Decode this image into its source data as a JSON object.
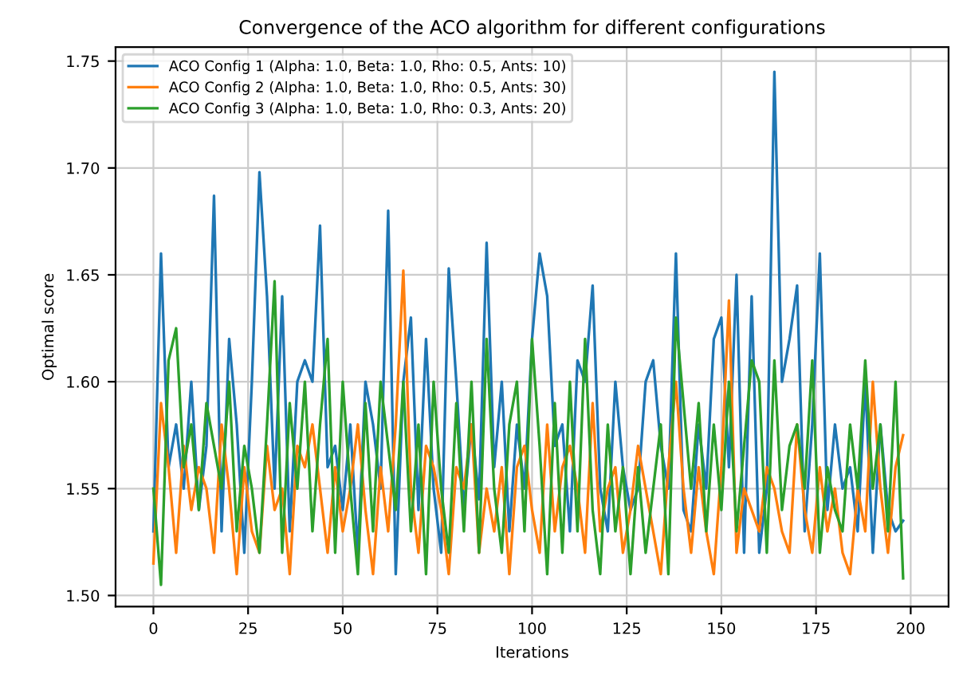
{
  "chart_data": {
    "type": "line",
    "title": "Convergence of the ACO algorithm for different configurations",
    "xlabel": "Iterations",
    "ylabel": "Optimal score",
    "x": [
      0,
      2,
      4,
      6,
      8,
      10,
      12,
      14,
      16,
      18,
      20,
      22,
      24,
      26,
      28,
      30,
      32,
      34,
      36,
      38,
      40,
      42,
      44,
      46,
      48,
      50,
      52,
      54,
      56,
      58,
      60,
      62,
      64,
      66,
      68,
      70,
      72,
      74,
      76,
      78,
      80,
      82,
      84,
      86,
      88,
      90,
      92,
      94,
      96,
      98,
      100,
      102,
      104,
      106,
      108,
      110,
      112,
      114,
      116,
      118,
      120,
      122,
      124,
      126,
      128,
      130,
      132,
      134,
      136,
      138,
      140,
      142,
      144,
      146,
      148,
      150,
      152,
      154,
      156,
      158,
      160,
      162,
      164,
      166,
      168,
      170,
      172,
      174,
      176,
      178,
      180,
      182,
      184,
      186,
      188,
      190,
      192,
      194,
      196,
      198
    ],
    "series": [
      {
        "name": "ACO Config 1 (Alpha: 1.0, Beta: 1.0, Rho: 0.5, Ants: 10)",
        "color": "#1f77b4",
        "values": [
          1.53,
          1.66,
          1.56,
          1.58,
          1.55,
          1.6,
          1.54,
          1.57,
          1.687,
          1.53,
          1.62,
          1.58,
          1.52,
          1.6,
          1.698,
          1.64,
          1.55,
          1.64,
          1.53,
          1.6,
          1.61,
          1.6,
          1.673,
          1.56,
          1.57,
          1.54,
          1.58,
          1.52,
          1.6,
          1.58,
          1.55,
          1.68,
          1.51,
          1.6,
          1.63,
          1.54,
          1.62,
          1.55,
          1.52,
          1.653,
          1.6,
          1.54,
          1.58,
          1.545,
          1.665,
          1.56,
          1.6,
          1.53,
          1.58,
          1.55,
          1.62,
          1.66,
          1.64,
          1.57,
          1.58,
          1.53,
          1.61,
          1.6,
          1.645,
          1.55,
          1.53,
          1.6,
          1.56,
          1.54,
          1.55,
          1.6,
          1.61,
          1.57,
          1.55,
          1.66,
          1.54,
          1.53,
          1.58,
          1.55,
          1.62,
          1.63,
          1.56,
          1.65,
          1.52,
          1.64,
          1.52,
          1.55,
          1.745,
          1.6,
          1.62,
          1.645,
          1.53,
          1.58,
          1.66,
          1.54,
          1.58,
          1.55,
          1.56,
          1.53,
          1.6,
          1.52,
          1.58,
          1.54,
          1.53,
          1.535
        ]
      },
      {
        "name": "ACO Config 2 (Alpha: 1.0, Beta: 1.0, Rho: 0.5, Ants: 30)",
        "color": "#ff7f0e",
        "values": [
          1.515,
          1.59,
          1.56,
          1.52,
          1.57,
          1.54,
          1.56,
          1.55,
          1.52,
          1.58,
          1.55,
          1.51,
          1.56,
          1.53,
          1.52,
          1.57,
          1.54,
          1.55,
          1.51,
          1.57,
          1.56,
          1.58,
          1.55,
          1.52,
          1.56,
          1.53,
          1.55,
          1.58,
          1.54,
          1.51,
          1.56,
          1.53,
          1.58,
          1.652,
          1.55,
          1.52,
          1.57,
          1.56,
          1.54,
          1.51,
          1.56,
          1.55,
          1.58,
          1.52,
          1.55,
          1.53,
          1.56,
          1.51,
          1.56,
          1.57,
          1.54,
          1.52,
          1.58,
          1.53,
          1.56,
          1.57,
          1.55,
          1.52,
          1.59,
          1.53,
          1.55,
          1.56,
          1.52,
          1.54,
          1.57,
          1.55,
          1.53,
          1.51,
          1.56,
          1.6,
          1.55,
          1.52,
          1.56,
          1.53,
          1.51,
          1.56,
          1.638,
          1.52,
          1.55,
          1.54,
          1.53,
          1.56,
          1.55,
          1.53,
          1.52,
          1.58,
          1.54,
          1.52,
          1.56,
          1.53,
          1.55,
          1.52,
          1.51,
          1.55,
          1.53,
          1.6,
          1.55,
          1.52,
          1.56,
          1.575
        ]
      },
      {
        "name": "ACO Config 3 (Alpha: 1.0, Beta: 1.0, Rho: 0.3, Ants: 20)",
        "color": "#2ca02c",
        "values": [
          1.55,
          1.505,
          1.61,
          1.625,
          1.56,
          1.58,
          1.54,
          1.59,
          1.57,
          1.55,
          1.6,
          1.53,
          1.57,
          1.55,
          1.52,
          1.58,
          1.647,
          1.52,
          1.59,
          1.55,
          1.6,
          1.53,
          1.58,
          1.62,
          1.52,
          1.6,
          1.55,
          1.51,
          1.59,
          1.53,
          1.6,
          1.57,
          1.54,
          1.6,
          1.53,
          1.58,
          1.51,
          1.6,
          1.55,
          1.52,
          1.59,
          1.53,
          1.6,
          1.52,
          1.62,
          1.55,
          1.52,
          1.58,
          1.6,
          1.53,
          1.62,
          1.57,
          1.51,
          1.59,
          1.52,
          1.6,
          1.53,
          1.62,
          1.54,
          1.51,
          1.58,
          1.53,
          1.56,
          1.51,
          1.56,
          1.52,
          1.55,
          1.58,
          1.51,
          1.63,
          1.59,
          1.55,
          1.59,
          1.53,
          1.58,
          1.54,
          1.6,
          1.53,
          1.57,
          1.61,
          1.6,
          1.52,
          1.61,
          1.54,
          1.57,
          1.58,
          1.55,
          1.61,
          1.52,
          1.56,
          1.54,
          1.53,
          1.58,
          1.55,
          1.61,
          1.55,
          1.58,
          1.53,
          1.6,
          1.508
        ]
      }
    ],
    "xlim": [
      -10,
      210
    ],
    "xticks": [
      0,
      25,
      50,
      75,
      100,
      125,
      150,
      175,
      200
    ],
    "ylim": [
      1.4948,
      1.7565
    ],
    "yticks": [
      {
        "value": 1.5,
        "label": "1.50"
      },
      1.55,
      {
        "value": 1.6,
        "label": "1.60"
      },
      1.65,
      {
        "value": 1.7,
        "label": "1.70"
      },
      1.75
    ],
    "grid": true,
    "legend": "top left"
  }
}
